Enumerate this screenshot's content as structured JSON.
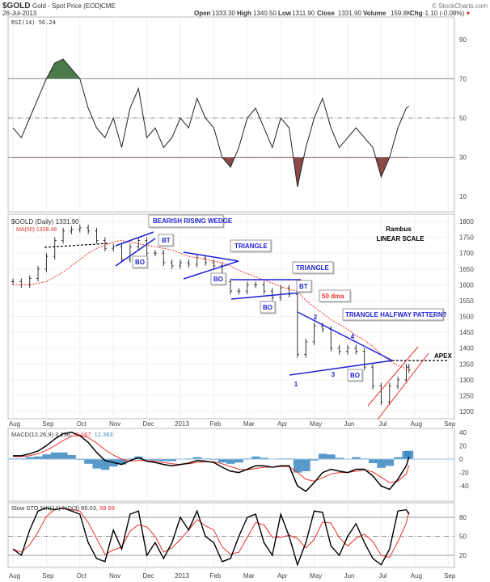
{
  "header": {
    "symbol": "$GOLD",
    "name": "Gold - Spot Price (EOD)",
    "exchange": "CME",
    "date": "26-Jul-2013",
    "watermark": "© StockCharts.com",
    "open_label": "Open",
    "open": "1333.30",
    "high_label": "High",
    "high": "1340.50",
    "low_label": "Low",
    "low": "1311.90",
    "close_label": "Close",
    "close": "1331.90",
    "volume_label": "Volume",
    "volume": "159.8K",
    "chg_label": "Chg",
    "chg": "-1.10 (-0.08%)"
  },
  "colors": {
    "price": "#333333",
    "ma": "#e8322c",
    "trend": "#1f1fd6",
    "macd_hist": "#3a87c0",
    "rsi_high": "#4a7a4a",
    "rsi_low": "#8a4a4a"
  },
  "legends": {
    "rsi": "RSI(14) 56.24",
    "price": "$GOLD (Daily) 1331.90",
    "ma": "MA(50) 1328.48",
    "macd": "MACD(12,26,9) 3.196,",
    "macd_signal": "-9.167,",
    "macd_hist": "12.363",
    "sto": "Slow STO %K(14) %D(3) 85.03,",
    "sto_d": "88.99"
  },
  "annotations": {
    "wedge": "BEARISH RISING WEDGE",
    "bt1": "BT",
    "bo1": "BO",
    "triangle1": "TRIANGLE",
    "bo2": "BO",
    "triangle2": "TRIANGLE",
    "bt2": "BT",
    "bo3": "BO",
    "dma": "50 dma",
    "halfway": "TRIANGLE HALFWAY PATTERN?",
    "bo4": "BO",
    "apex": "APEX",
    "author": "Rambus",
    "scale": "LINEAR SCALE",
    "p1": "1",
    "p2": "2",
    "p3": "3",
    "p4": "4"
  },
  "chart_data": {
    "type": "line",
    "x_unit": "months since Aug 2012",
    "x_ticks": [
      "Aug",
      "Sep",
      "Oct",
      "Nov",
      "Dec",
      "2013",
      "Feb",
      "Mar",
      "Apr",
      "May",
      "Jun",
      "Jul",
      "Aug",
      "Sep"
    ],
    "x": [
      0,
      0.25,
      0.5,
      0.75,
      1,
      1.25,
      1.5,
      1.75,
      2,
      2.25,
      2.5,
      2.75,
      3,
      3.25,
      3.5,
      3.75,
      4,
      4.25,
      4.5,
      4.75,
      5,
      5.25,
      5.5,
      5.75,
      6,
      6.25,
      6.5,
      6.75,
      7,
      7.25,
      7.5,
      7.75,
      8,
      8.25,
      8.5,
      8.75,
      9,
      9.25,
      9.5,
      9.75,
      10,
      10.25,
      10.5,
      10.75,
      11,
      11.25,
      11.5,
      11.75,
      11.83
    ],
    "price": {
      "ylim": [
        1180,
        1820
      ],
      "ticks": [
        1800,
        1750,
        1700,
        1650,
        1600,
        1550,
        1500,
        1450,
        1400,
        1350,
        1300,
        1250,
        1200
      ],
      "close": [
        1610,
        1600,
        1620,
        1650,
        1690,
        1740,
        1770,
        1775,
        1780,
        1770,
        1740,
        1715,
        1720,
        1680,
        1720,
        1740,
        1700,
        1700,
        1670,
        1660,
        1670,
        1665,
        1685,
        1670,
        1660,
        1610,
        1580,
        1580,
        1600,
        1600,
        1580,
        1560,
        1590,
        1570,
        1380,
        1420,
        1470,
        1460,
        1400,
        1390,
        1400,
        1390,
        1340,
        1280,
        1230,
        1280,
        1300,
        1340,
        1332
      ],
      "ma50": [
        1600,
        1600,
        1600,
        1605,
        1610,
        1625,
        1640,
        1660,
        1680,
        1700,
        1715,
        1725,
        1735,
        1740,
        1735,
        1730,
        1725,
        1720,
        1715,
        1710,
        1700,
        1690,
        1685,
        1680,
        1675,
        1670,
        1660,
        1645,
        1635,
        1625,
        1615,
        1605,
        1595,
        1585,
        1580,
        1550,
        1530,
        1510,
        1490,
        1475,
        1460,
        1440,
        1425,
        1405,
        1380,
        1360,
        1345,
        1335,
        1328
      ]
    },
    "rsi": {
      "ticks": [
        90,
        70,
        50,
        30,
        10
      ],
      "values": [
        45,
        40,
        50,
        60,
        70,
        78,
        80,
        75,
        70,
        55,
        45,
        40,
        50,
        35,
        55,
        65,
        40,
        45,
        35,
        40,
        50,
        45,
        60,
        50,
        45,
        30,
        25,
        35,
        50,
        55,
        45,
        35,
        50,
        45,
        15,
        35,
        50,
        60,
        45,
        35,
        40,
        45,
        40,
        35,
        20,
        30,
        45,
        55,
        56
      ]
    },
    "macd": {
      "ticks": [
        40,
        20,
        0,
        -20,
        -40
      ],
      "macd": [
        5,
        5,
        8,
        12,
        20,
        30,
        38,
        40,
        35,
        25,
        10,
        -2,
        -5,
        -8,
        -2,
        2,
        -3,
        -5,
        -8,
        -10,
        -8,
        -6,
        -2,
        -3,
        -5,
        -12,
        -18,
        -20,
        -15,
        -10,
        -10,
        -12,
        -10,
        -10,
        -40,
        -48,
        -35,
        -20,
        -15,
        -18,
        -20,
        -15,
        -15,
        -25,
        -40,
        -45,
        -30,
        -10,
        3.2
      ],
      "signal": [
        4,
        4,
        5,
        8,
        13,
        20,
        28,
        34,
        36,
        32,
        24,
        14,
        6,
        0,
        -3,
        -2,
        -2,
        -3,
        -5,
        -7,
        -8,
        -7,
        -5,
        -4,
        -4,
        -7,
        -11,
        -15,
        -16,
        -14,
        -12,
        -12,
        -11,
        -11,
        -20,
        -30,
        -33,
        -28,
        -22,
        -20,
        -20,
        -18,
        -16,
        -19,
        -27,
        -35,
        -33,
        -22,
        -9.2
      ]
    },
    "sto": {
      "ticks": [
        80,
        50,
        20
      ],
      "k": [
        30,
        20,
        60,
        90,
        95,
        92,
        95,
        90,
        85,
        40,
        15,
        10,
        60,
        30,
        85,
        90,
        20,
        40,
        15,
        40,
        80,
        60,
        90,
        50,
        40,
        10,
        15,
        50,
        80,
        85,
        40,
        20,
        85,
        50,
        5,
        40,
        90,
        88,
        35,
        20,
        50,
        70,
        40,
        15,
        5,
        30,
        90,
        92,
        85
      ]
    }
  }
}
